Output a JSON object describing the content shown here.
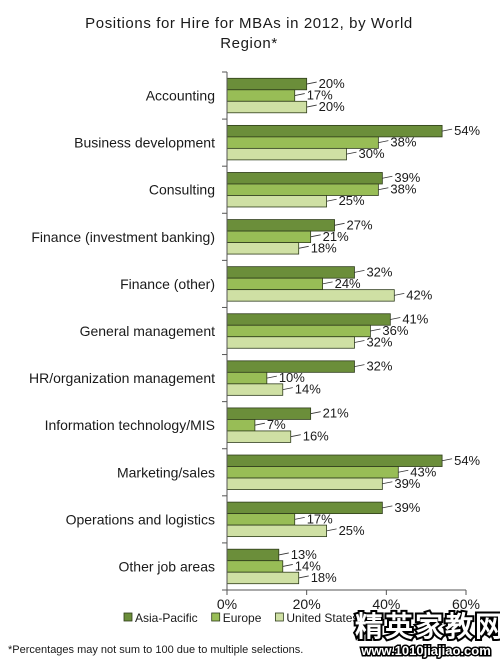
{
  "chart_data": {
    "type": "bar",
    "orientation": "horizontal",
    "title": "Positions for Hire for MBAs in 2012, by World Region*",
    "xlabel": "",
    "ylabel": "",
    "xlim": [
      0,
      60
    ],
    "x_ticks": [
      "0%",
      "20%",
      "40%",
      "60%"
    ],
    "value_suffix": "%",
    "grid": false,
    "legend_position": "bottom",
    "categories": [
      "Accounting",
      "Business development",
      "Consulting",
      "Finance (investment banking)",
      "Finance (other)",
      "General management",
      "HR/organization management",
      "Information technology/MIS",
      "Marketing/sales",
      "Operations and logistics",
      "Other job areas"
    ],
    "series": [
      {
        "name": "Asia-Pacific",
        "color": "#6b8e3a",
        "values": [
          20,
          54,
          39,
          27,
          32,
          41,
          32,
          21,
          54,
          39,
          13
        ],
        "labels": [
          "20%",
          "54%",
          "39%",
          "27%",
          "32%",
          "41%",
          "32%",
          "21%",
          "54%",
          "39%",
          "13%"
        ]
      },
      {
        "name": "Europe",
        "color": "#98bd56",
        "values": [
          17,
          38,
          38,
          21,
          24,
          36,
          10,
          7,
          43,
          17,
          14
        ],
        "labels": [
          "17%",
          "38%",
          "38%",
          "21%",
          "24%",
          "36%",
          "10%",
          "7%",
          "43%",
          "17%",
          "14%"
        ]
      },
      {
        "name": "United States",
        "color": "#cfe0a4",
        "values": [
          20,
          30,
          25,
          18,
          42,
          32,
          14,
          16,
          39,
          25,
          18
        ],
        "labels": [
          "20%",
          "30%",
          "25%",
          "18%",
          "42%",
          "32%",
          "14%",
          "16%",
          "39%",
          "25%",
          "18%"
        ]
      }
    ],
    "footnote": "*Percentages may not sum to 100 due to multiple selections.",
    "watermark": "精英家教网 www.1010jiajiao.com"
  }
}
